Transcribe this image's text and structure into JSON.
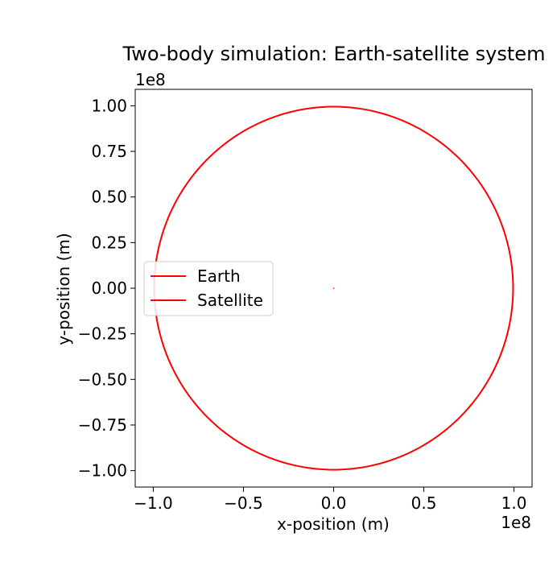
{
  "chart_data": {
    "type": "line",
    "title": "Two-body simulation: Earth-satellite system",
    "xlabel": "x-position (m)",
    "ylabel": "y-position (m)",
    "x_offset_label": "1e8",
    "y_offset_label": "1e8",
    "xlim": [
      -1.1,
      1.1
    ],
    "ylim": [
      -1.09,
      1.09
    ],
    "xticks": [
      -1.0,
      -0.5,
      0.0,
      0.5,
      1.0
    ],
    "xtick_labels": [
      "−1.0",
      "−0.5",
      "0.0",
      "0.5",
      "1.0"
    ],
    "yticks": [
      1.0,
      0.75,
      0.5,
      0.25,
      0.0,
      -0.25,
      -0.5,
      -0.75,
      -1.0
    ],
    "ytick_labels": [
      "1.00",
      "0.75",
      "0.50",
      "0.25",
      "0.00",
      "−0.25",
      "−0.50",
      "−0.75",
      "−1.00"
    ],
    "grid": false,
    "legend_position": "center-left",
    "series": [
      {
        "name": "Earth",
        "color": "#ff0000",
        "shape": "point",
        "x": [
          0.0
        ],
        "y": [
          0.0
        ]
      },
      {
        "name": "Satellite",
        "color": "#ff0000",
        "shape": "circular orbit",
        "center": [
          0.0,
          0.0
        ],
        "radius": 0.995
      }
    ]
  }
}
